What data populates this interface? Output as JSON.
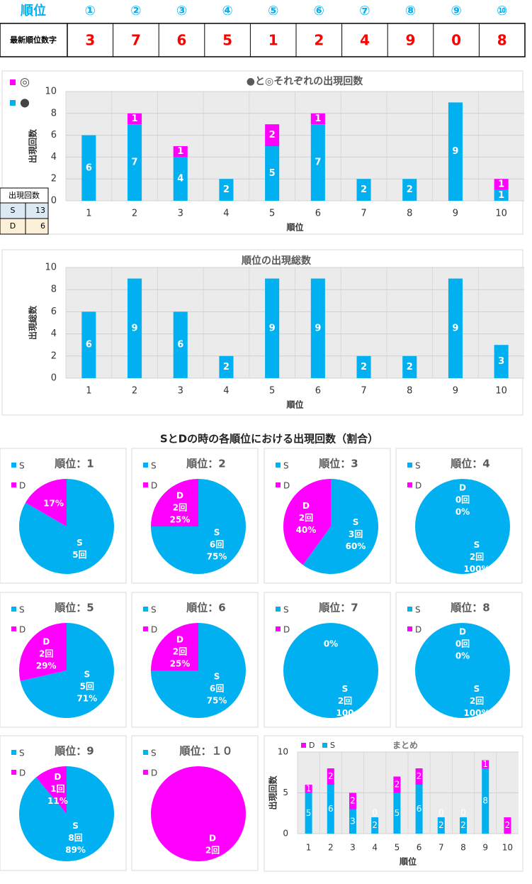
{
  "header_table": {
    "label": "順位",
    "columns": [
      "①",
      "②",
      "③",
      "④",
      "⑤",
      "⑥",
      "⑦",
      "⑧",
      "⑨",
      "⑩"
    ]
  },
  "latest_row": {
    "label": "最新順位数字",
    "values": [
      3,
      7,
      6,
      5,
      1,
      2,
      4,
      9,
      0,
      8
    ]
  },
  "count_table": {
    "title": "出現回数",
    "rows": [
      [
        "S",
        13
      ],
      [
        "D",
        6
      ]
    ]
  },
  "pies_heading": "SとDの時の各順位における出現回数（割合）",
  "chart_data": [
    {
      "type": "bar",
      "stacked": true,
      "title": "●と◎それぞれの出現回数",
      "xlabel": "順位",
      "ylabel": "出現回数",
      "categories": [
        "1",
        "2",
        "3",
        "4",
        "5",
        "6",
        "7",
        "8",
        "9",
        "10"
      ],
      "ylim": [
        0,
        10
      ],
      "yticks": [
        0,
        2,
        4,
        6,
        8,
        10
      ],
      "grid": true,
      "series": [
        {
          "name": "●",
          "color": "#00b0f0",
          "values": [
            6,
            7,
            4,
            2,
            5,
            7,
            2,
            2,
            9,
            1
          ]
        },
        {
          "name": "◎",
          "color": "#ff00ff",
          "values": [
            0,
            1,
            1,
            0,
            2,
            1,
            0,
            0,
            0,
            1
          ]
        }
      ]
    },
    {
      "type": "bar",
      "stacked": false,
      "title": "順位の出現総数",
      "xlabel": "順位",
      "ylabel": "出現総数",
      "categories": [
        "1",
        "2",
        "3",
        "4",
        "5",
        "6",
        "7",
        "8",
        "9",
        "10"
      ],
      "ylim": [
        0,
        10
      ],
      "yticks": [
        0,
        2,
        4,
        6,
        8,
        10
      ],
      "grid": true,
      "series": [
        {
          "color": "#00b0f0",
          "values": [
            6,
            9,
            6,
            2,
            9,
            9,
            2,
            2,
            9,
            3
          ]
        }
      ]
    },
    {
      "type": "pie",
      "title": "順位：1",
      "categories": [
        "S",
        "D"
      ],
      "colors": [
        "#00b0f0",
        "#ff00ff"
      ],
      "values": [
        5,
        1
      ],
      "value_labels": [
        "5回",
        null
      ],
      "percent_labels": [
        null,
        "17%"
      ]
    },
    {
      "type": "pie",
      "title": "順位：2",
      "categories": [
        "S",
        "D"
      ],
      "colors": [
        "#00b0f0",
        "#ff00ff"
      ],
      "values": [
        6,
        2
      ],
      "value_labels": [
        "6回",
        "2回"
      ],
      "percent_labels": [
        "75%",
        "25%"
      ]
    },
    {
      "type": "pie",
      "title": "順位：3",
      "categories": [
        "S",
        "D"
      ],
      "colors": [
        "#00b0f0",
        "#ff00ff"
      ],
      "values": [
        3,
        2
      ],
      "value_labels": [
        "3回",
        "2回"
      ],
      "percent_labels": [
        "60%",
        "40%"
      ]
    },
    {
      "type": "pie",
      "title": "順位：4",
      "categories": [
        "S",
        "D"
      ],
      "colors": [
        "#00b0f0",
        "#ff00ff"
      ],
      "values": [
        2,
        0
      ],
      "value_labels": [
        "2回",
        "0回"
      ],
      "percent_labels": [
        "100%",
        "0%"
      ]
    },
    {
      "type": "pie",
      "title": "順位：5",
      "categories": [
        "S",
        "D"
      ],
      "colors": [
        "#00b0f0",
        "#ff00ff"
      ],
      "values": [
        5,
        2
      ],
      "value_labels": [
        "5回",
        "2回"
      ],
      "percent_labels": [
        "71%",
        "29%"
      ]
    },
    {
      "type": "pie",
      "title": "順位：6",
      "categories": [
        "S",
        "D"
      ],
      "colors": [
        "#00b0f0",
        "#ff00ff"
      ],
      "values": [
        6,
        2
      ],
      "value_labels": [
        "6回",
        "2回"
      ],
      "percent_labels": [
        "75%",
        "25%"
      ]
    },
    {
      "type": "pie",
      "title": "順位：7",
      "categories": [
        "S",
        "D"
      ],
      "colors": [
        "#00b0f0",
        "#ff00ff"
      ],
      "values": [
        2,
        0
      ],
      "value_labels": [
        "2回",
        null
      ],
      "percent_labels": [
        "100",
        "0%"
      ]
    },
    {
      "type": "pie",
      "title": "順位：8",
      "categories": [
        "S",
        "D"
      ],
      "colors": [
        "#00b0f0",
        "#ff00ff"
      ],
      "values": [
        2,
        0
      ],
      "value_labels": [
        "2回",
        "0回"
      ],
      "percent_labels": [
        "100%",
        "0%"
      ]
    },
    {
      "type": "pie",
      "title": "順位：9",
      "categories": [
        "S",
        "D"
      ],
      "colors": [
        "#00b0f0",
        "#ff00ff"
      ],
      "values": [
        8,
        1
      ],
      "value_labels": [
        "8回",
        "1回"
      ],
      "percent_labels": [
        "89%",
        "11%"
      ]
    },
    {
      "type": "pie",
      "title": "順位：１０",
      "categories": [
        "S",
        "D"
      ],
      "colors": [
        "#00b0f0",
        "#ff00ff"
      ],
      "values": [
        0,
        2
      ],
      "value_labels": [
        null,
        "2回"
      ],
      "percent_labels": [
        null,
        null
      ]
    },
    {
      "type": "bar",
      "stacked": true,
      "title": "まとめ",
      "xlabel": "順位",
      "ylabel": "出現回数",
      "categories": [
        "1",
        "2",
        "3",
        "4",
        "5",
        "6",
        "7",
        "8",
        "9",
        "10"
      ],
      "ylim": [
        0,
        10
      ],
      "yticks": [
        0,
        5,
        10
      ],
      "grid": true,
      "series": [
        {
          "name": "S",
          "color": "#00b0f0",
          "values": [
            5,
            6,
            3,
            2,
            5,
            6,
            2,
            2,
            8,
            0
          ]
        },
        {
          "name": "D",
          "color": "#ff00ff",
          "values": [
            1,
            2,
            2,
            0,
            2,
            2,
            0,
            0,
            1,
            2
          ]
        }
      ]
    }
  ]
}
